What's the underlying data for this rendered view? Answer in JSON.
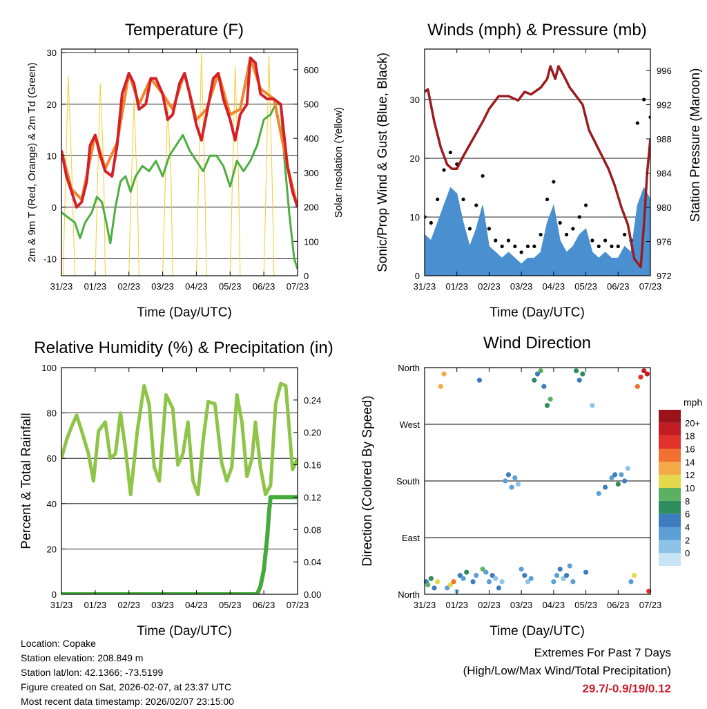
{
  "chart_data": [
    {
      "id": "temp",
      "type": "line",
      "title": "Temperature (F)",
      "xlabel": "Time (Day/UTC)",
      "ylabel": "2m & 9m T (Red, Orange) & 2m Td (Green)",
      "y2label": "Solar Insolation (Yellow)",
      "xticks": [
        "31/23",
        "01/23",
        "02/23",
        "03/23",
        "04/23",
        "05/23",
        "06/23",
        "07/23"
      ],
      "yticks": [
        -10,
        0,
        10,
        20,
        30
      ],
      "y2ticks": [
        0,
        100,
        200,
        300,
        400,
        500,
        600
      ],
      "ylim": [
        -13.3,
        30.7
      ],
      "y2lim": [
        0,
        660
      ],
      "xlim": [
        0,
        7
      ],
      "series": [
        {
          "name": "2m T",
          "color": "#d42027",
          "x": [
            0,
            0.15,
            0.3,
            0.45,
            0.6,
            0.75,
            0.85,
            1.0,
            1.15,
            1.3,
            1.5,
            1.65,
            1.8,
            2.0,
            2.15,
            2.3,
            2.5,
            2.65,
            2.8,
            3.0,
            3.15,
            3.3,
            3.5,
            3.65,
            3.8,
            4.0,
            4.15,
            4.3,
            4.5,
            4.65,
            4.8,
            5.0,
            5.15,
            5.3,
            5.5,
            5.6,
            5.75,
            5.9,
            6.1,
            6.3,
            6.5,
            6.7,
            6.85,
            7.0
          ],
          "y": [
            11,
            6,
            3,
            0,
            1,
            5,
            12,
            14,
            10,
            7,
            6,
            12,
            22,
            26,
            24,
            19,
            20,
            25,
            25,
            22,
            17,
            18,
            24,
            26,
            22,
            16,
            13,
            18,
            25,
            26,
            21,
            17,
            13,
            18,
            20,
            29,
            28,
            22,
            21,
            21,
            20,
            8,
            3,
            0
          ]
        },
        {
          "name": "9m T",
          "color": "#f2862b",
          "x": [
            0,
            0.3,
            0.6,
            1.0,
            1.3,
            1.65,
            2.0,
            2.3,
            2.65,
            3.0,
            3.3,
            3.65,
            4.0,
            4.3,
            4.65,
            5.0,
            5.3,
            5.6,
            5.9,
            6.3,
            6.7,
            7.0
          ],
          "y": [
            11,
            3.5,
            1.5,
            14,
            7.5,
            12.5,
            26,
            20,
            25,
            22,
            19,
            26,
            17,
            19,
            26,
            18,
            19,
            29,
            23,
            21,
            8,
            0
          ]
        },
        {
          "name": "2m Td",
          "color": "#4cae3f",
          "x": [
            0,
            0.2,
            0.4,
            0.55,
            0.7,
            0.9,
            1.05,
            1.2,
            1.3,
            1.45,
            1.6,
            1.75,
            1.9,
            2.05,
            2.2,
            2.4,
            2.6,
            2.8,
            3.0,
            3.2,
            3.4,
            3.6,
            3.8,
            4.0,
            4.2,
            4.4,
            4.6,
            4.8,
            5.0,
            5.2,
            5.4,
            5.6,
            5.8,
            6.0,
            6.2,
            6.35,
            6.5,
            6.6,
            6.75,
            6.9,
            7.0
          ],
          "y": [
            -1,
            -2,
            -3,
            -6,
            -3,
            -1,
            2,
            1,
            -2,
            -7,
            0,
            5,
            6,
            3,
            6,
            8,
            7,
            9,
            6,
            10,
            12,
            14,
            11,
            9,
            7,
            10,
            10,
            8,
            4,
            9,
            7,
            9,
            12,
            17,
            18,
            20,
            20,
            10,
            -1,
            -10,
            -12
          ]
        },
        {
          "name": "Solar Insolation",
          "color": "#f4d03f",
          "axis": "y2",
          "x": [
            0,
            0.05,
            0.1,
            0.2,
            0.3,
            0.4,
            0.9,
            1.0,
            1.05,
            1.15,
            1.25,
            1.3,
            1.9,
            2.0,
            2.05,
            2.15,
            2.25,
            2.3,
            2.9,
            3.0,
            3.05,
            3.15,
            3.25,
            3.3,
            3.9,
            4.0,
            4.05,
            4.15,
            4.25,
            4.3,
            4.9,
            5.0,
            5.05,
            5.15,
            5.25,
            5.3,
            5.9,
            6.0,
            6.05,
            6.15,
            6.25,
            6.3,
            6.9,
            7.0
          ],
          "y": [
            0,
            0,
            200,
            580,
            320,
            0,
            0,
            0,
            200,
            560,
            320,
            0,
            0,
            0,
            200,
            510,
            250,
            0,
            0,
            0,
            180,
            500,
            280,
            0,
            0,
            0,
            220,
            650,
            280,
            0,
            0,
            0,
            200,
            610,
            280,
            0,
            0,
            0,
            200,
            640,
            260,
            0,
            0,
            0
          ]
        }
      ]
    },
    {
      "id": "wind",
      "type": "line",
      "title": "Winds (mph) & Pressure (mb)",
      "xlabel": "Time (Day/UTC)",
      "ylabel": "Sonic/Prop Wind & Gust (Blue, Black)",
      "y2label": "Station Pressure (Maroon)",
      "xticks": [
        "31/23",
        "01/23",
        "02/23",
        "03/23",
        "04/23",
        "05/23",
        "06/23",
        "07/23"
      ],
      "yticks": [
        0,
        10,
        20,
        30
      ],
      "y2ticks": [
        972,
        976,
        980,
        984,
        988,
        992,
        996
      ],
      "ylim": [
        0,
        38.6
      ],
      "y2lim": [
        972,
        998.5
      ],
      "xlim": [
        0,
        7
      ],
      "series": [
        {
          "name": "Wind",
          "color": "#4a90d0",
          "x": [
            0,
            0.2,
            0.4,
            0.6,
            0.8,
            1.0,
            1.2,
            1.4,
            1.6,
            1.8,
            2.0,
            2.2,
            2.4,
            2.6,
            2.8,
            3.0,
            3.2,
            3.4,
            3.6,
            3.8,
            4.0,
            4.2,
            4.4,
            4.6,
            4.8,
            5.0,
            5.2,
            5.4,
            5.6,
            5.8,
            6.0,
            6.2,
            6.4,
            6.6,
            6.8,
            7.0
          ],
          "y": [
            7,
            6,
            9,
            12,
            15,
            14,
            9,
            5,
            8,
            12,
            5,
            4,
            3,
            4,
            3,
            2,
            3,
            3,
            4,
            9,
            12,
            6,
            4,
            5,
            7,
            8,
            4,
            3,
            4,
            3,
            3,
            5,
            4,
            12,
            15,
            13
          ]
        },
        {
          "name": "Gust",
          "color": "#000000",
          "x": [
            0,
            0.2,
            0.4,
            0.6,
            0.8,
            1.0,
            1.2,
            1.4,
            1.6,
            1.8,
            2.0,
            2.2,
            2.4,
            2.6,
            2.8,
            3.0,
            3.2,
            3.4,
            3.6,
            3.8,
            4.0,
            4.2,
            4.4,
            4.6,
            4.8,
            5.0,
            5.2,
            5.4,
            5.6,
            5.8,
            6.0,
            6.2,
            6.4,
            6.6,
            6.8,
            7.0
          ],
          "y": [
            10,
            9,
            13,
            18,
            21,
            19,
            13,
            8,
            12,
            17,
            8,
            6,
            5,
            6,
            5,
            4,
            5,
            5,
            7,
            13,
            16,
            9,
            7,
            8,
            10,
            12,
            6,
            5,
            6,
            5,
            5,
            7,
            6,
            26,
            30,
            27
          ]
        },
        {
          "name": "Station Pressure",
          "color": "#9b1c1f",
          "axis": "y2",
          "x": [
            0,
            0.1,
            0.3,
            0.5,
            0.7,
            0.85,
            1.0,
            1.2,
            1.5,
            1.8,
            2.0,
            2.3,
            2.6,
            2.9,
            3.1,
            3.3,
            3.6,
            3.8,
            3.9,
            4.05,
            4.15,
            4.3,
            4.5,
            4.7,
            4.9,
            5.1,
            5.3,
            5.5,
            5.7,
            5.9,
            6.1,
            6.3,
            6.5,
            6.7,
            6.8,
            6.9,
            7.0
          ],
          "y": [
            993.5,
            993.8,
            990,
            987,
            985,
            984.5,
            984.5,
            986,
            988,
            990,
            991.5,
            993,
            993,
            992.5,
            993.5,
            993.2,
            994,
            995,
            996.5,
            995,
            996.5,
            995.5,
            994,
            993,
            992,
            989,
            987.5,
            986,
            984.5,
            982.5,
            980,
            978,
            974,
            973,
            978,
            984,
            988
          ]
        }
      ]
    },
    {
      "id": "rh",
      "type": "line",
      "title": "Relative Humidity (%) & Precipitation (in)",
      "xlabel": "Time (Day/UTC)",
      "ylabel": "Percent & Total Rainfall",
      "xticks": [
        "31/23",
        "01/23",
        "02/23",
        "03/23",
        "04/23",
        "05/23",
        "06/23",
        "07/23"
      ],
      "yticks": [
        0,
        20,
        40,
        60,
        80,
        100
      ],
      "y2ticks": [
        "0.00",
        "0.04",
        "0.08",
        "0.12",
        "0.16",
        "0.20",
        "0.24"
      ],
      "ylim": [
        0,
        100
      ],
      "y2lim": [
        0,
        0.28
      ],
      "xlim": [
        0,
        7
      ],
      "series": [
        {
          "name": "RH",
          "color": "#8ec549",
          "x": [
            0,
            0.15,
            0.3,
            0.45,
            0.6,
            0.8,
            0.95,
            1.1,
            1.3,
            1.45,
            1.6,
            1.75,
            1.9,
            2.05,
            2.25,
            2.45,
            2.6,
            2.75,
            2.9,
            3.1,
            3.3,
            3.45,
            3.6,
            3.75,
            3.9,
            4.05,
            4.2,
            4.35,
            4.55,
            4.75,
            4.9,
            5.05,
            5.2,
            5.35,
            5.5,
            5.65,
            5.75,
            5.9,
            6.05,
            6.2,
            6.35,
            6.5,
            6.65,
            6.85,
            7.0
          ],
          "y": [
            60,
            68,
            74,
            79,
            72,
            62,
            50,
            72,
            76,
            60,
            62,
            80,
            64,
            44,
            72,
            92,
            84,
            56,
            50,
            88,
            82,
            57,
            62,
            76,
            50,
            44,
            68,
            85,
            84,
            58,
            50,
            56,
            88,
            76,
            52,
            60,
            76,
            56,
            44,
            48,
            84,
            93,
            92,
            55,
            60
          ]
        },
        {
          "name": "Total Rainfall",
          "color": "#44aa3c",
          "axis": "y2",
          "x": [
            0,
            5.8,
            5.9,
            6.0,
            6.1,
            6.15,
            6.2,
            6.3,
            6.5,
            6.8,
            7.0
          ],
          "y": [
            0,
            0,
            0.01,
            0.03,
            0.07,
            0.1,
            0.12,
            0.12,
            0.12,
            0.12,
            0.12
          ]
        }
      ]
    },
    {
      "id": "dir",
      "type": "scatter",
      "title": "Wind Direction",
      "xlabel": "Time (Day/UTC)",
      "ylabel": "Direction (Colored By Speed)",
      "xticks": [
        "31/23",
        "01/23",
        "02/23",
        "03/23",
        "04/23",
        "05/23",
        "06/23",
        "07/23"
      ],
      "yticks": [
        "North",
        "East",
        "South",
        "West",
        "North"
      ],
      "ylim": [
        0,
        360
      ],
      "xlim": [
        0,
        7
      ],
      "colorbar": {
        "label": "mph",
        "labels": [
          "0",
          "2",
          "4",
          "6",
          "8",
          "10",
          "12",
          "14",
          "16",
          "18",
          "20+"
        ],
        "colors": [
          "#c6e6f7",
          "#8ec3e8",
          "#5b9fd4",
          "#3d7cbf",
          "#2e8d5e",
          "#5bb061",
          "#e3d84c",
          "#f6a948",
          "#f27030",
          "#e0322b",
          "#c21d24",
          "#9b1218"
        ]
      },
      "series": [
        {
          "name": "Wind Direction",
          "x": [
            0.05,
            0.1,
            0.2,
            0.3,
            0.4,
            0.5,
            0.6,
            0.7,
            0.8,
            0.9,
            1.0,
            1.1,
            1.2,
            1.3,
            1.5,
            1.6,
            1.7,
            1.8,
            1.9,
            2.0,
            2.1,
            2.2,
            2.3,
            2.4,
            2.5,
            2.6,
            2.7,
            2.8,
            2.9,
            3.0,
            3.1,
            3.2,
            3.3,
            3.4,
            3.5,
            3.6,
            3.7,
            3.8,
            3.9,
            4.0,
            4.1,
            4.2,
            4.3,
            4.4,
            4.5,
            4.6,
            4.7,
            4.8,
            4.9,
            5.0,
            5.2,
            5.4,
            5.6,
            5.8,
            5.9,
            6.0,
            6.1,
            6.2,
            6.3,
            6.4,
            6.5,
            6.6,
            6.7,
            6.8,
            6.9,
            6.95
          ],
          "y": [
            20,
            15,
            25,
            10,
            20,
            330,
            350,
            10,
            15,
            20,
            5,
            30,
            25,
            35,
            20,
            30,
            340,
            40,
            35,
            20,
            30,
            25,
            10,
            20,
            180,
            190,
            170,
            185,
            175,
            40,
            30,
            20,
            25,
            340,
            350,
            355,
            330,
            300,
            310,
            20,
            30,
            40,
            25,
            30,
            45,
            20,
            355,
            340,
            350,
            35,
            300,
            160,
            170,
            185,
            190,
            175,
            190,
            180,
            200,
            20,
            30,
            330,
            345,
            355,
            350,
            5
          ],
          "speed": [
            6,
            10,
            8,
            5,
            12,
            14,
            13,
            4,
            11,
            16,
            2,
            6,
            3,
            8,
            6,
            4,
            5,
            9,
            4,
            3,
            6,
            2,
            5,
            1,
            4,
            5,
            3,
            4,
            2,
            3,
            5,
            1,
            4,
            8,
            6,
            10,
            5,
            7,
            9,
            4,
            3,
            5,
            2,
            6,
            3,
            4,
            8,
            5,
            7,
            5,
            1,
            4,
            6,
            3,
            5,
            7,
            4,
            6,
            2,
            3,
            11,
            15,
            17,
            19,
            20,
            18
          ]
        }
      ]
    }
  ],
  "footer": {
    "location": "Location: Copake",
    "elevation": "Station elevation: 208.849 m",
    "latlon": "Station lat/lon: 42.1366; -73.5199",
    "created": "Figure created on Sat, 2026-02-07, at 23:37 UTC",
    "recent": "Most recent data timestamp: 2026/02/07 23:15:00"
  },
  "extremes": {
    "title": "Extremes For Past 7 Days",
    "subtitle": "(High/Low/Max Wind/Total Precipitation)",
    "value": "29.7/-0.9/19/0.12"
  }
}
